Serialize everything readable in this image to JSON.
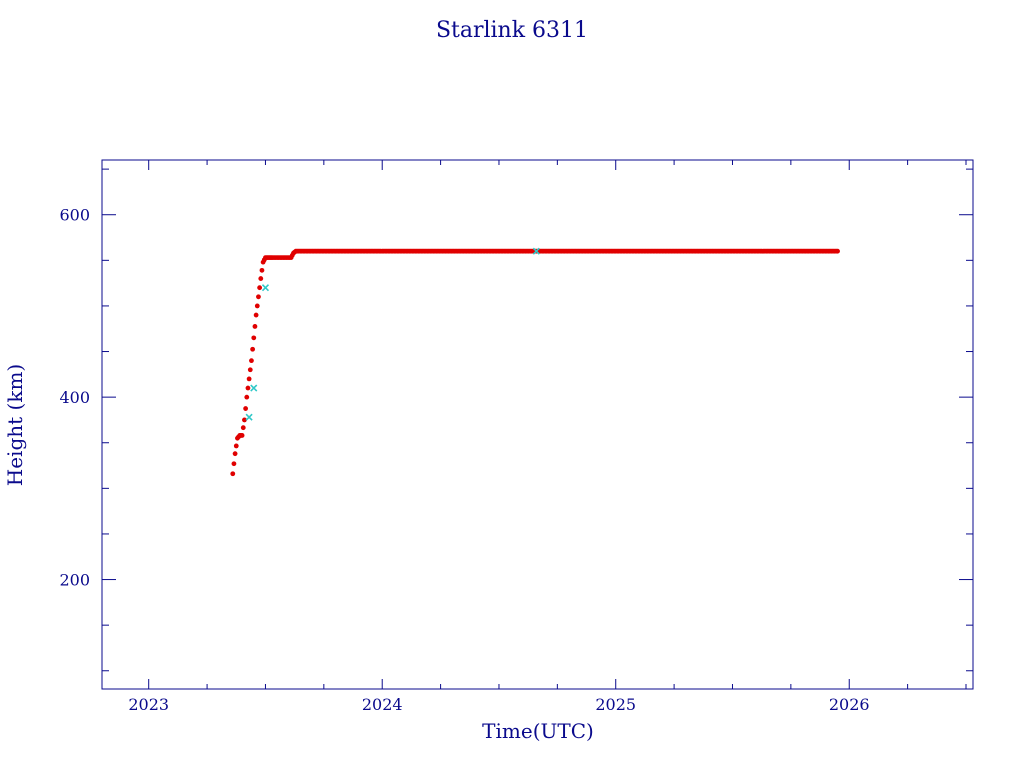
{
  "chart_data": {
    "type": "scatter",
    "title": "Starlink 6311",
    "xlabel": "Time(UTC)",
    "ylabel": "Height (km)",
    "xlim": [
      2022.8,
      2026.53
    ],
    "ylim": [
      80,
      660
    ],
    "x_ticks": [
      2023,
      2024,
      2025,
      2026
    ],
    "x_tick_labels": [
      "2023",
      "2024",
      "2025",
      "2026"
    ],
    "y_ticks": [
      200,
      400,
      600
    ],
    "y_tick_labels": [
      "200",
      "400",
      "600"
    ],
    "grid": false,
    "colors": {
      "axes": "#0a0a8c",
      "points": "#e00000",
      "markers": "#30c8c8"
    },
    "series": [
      {
        "x": [
          2023.36,
          2023.37,
          2023.38,
          2023.39,
          2023.4,
          2023.41,
          2023.42,
          2023.43,
          2023.44,
          2023.45,
          2023.46,
          2023.47,
          2023.48,
          2023.49,
          2023.5,
          2023.51,
          2023.52,
          2023.53,
          2023.55,
          2023.57,
          2023.59,
          2023.61,
          2023.62,
          2023.63,
          2023.7,
          2023.8,
          2023.9,
          2024.0,
          2024.2,
          2024.4,
          2024.6,
          2024.66,
          2024.8,
          2025.0,
          2025.2,
          2025.4,
          2025.6,
          2025.8,
          2025.95
        ],
        "values": [
          316,
          338,
          355,
          358,
          358,
          375,
          400,
          420,
          440,
          465,
          490,
          510,
          530,
          548,
          553,
          553,
          553,
          553,
          553,
          553,
          553,
          553,
          558,
          560,
          560,
          560,
          560,
          560,
          560,
          560,
          560,
          560,
          560,
          560,
          560,
          560,
          560,
          560,
          560
        ]
      }
    ],
    "markers": {
      "x": [
        2023.43,
        2023.45,
        2023.5,
        2024.66
      ],
      "values": [
        378,
        410,
        520,
        560
      ]
    }
  }
}
